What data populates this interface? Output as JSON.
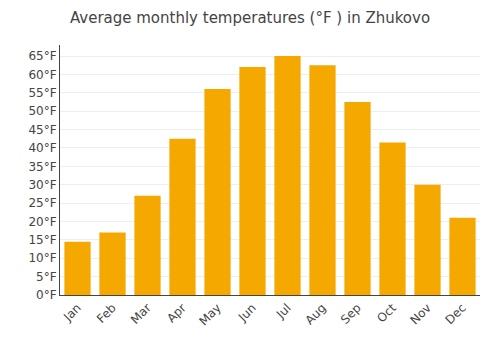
{
  "chart_data": {
    "type": "bar",
    "title": "Average monthly temperatures (°F ) in Zhukovo",
    "categories": [
      "Jan",
      "Feb",
      "Mar",
      "Apr",
      "May",
      "Jun",
      "Jul",
      "Aug",
      "Sep",
      "Oct",
      "Nov",
      "Dec"
    ],
    "values": [
      14.5,
      17.0,
      27.0,
      42.5,
      56.0,
      62.0,
      65.0,
      62.5,
      52.5,
      41.5,
      30.0,
      21.0
    ],
    "color": "#F5A800",
    "ylim": [
      0,
      68
    ],
    "yticks": [
      {
        "value": 0,
        "label": "0°F"
      },
      {
        "value": 5,
        "label": "5°F"
      },
      {
        "value": 10,
        "label": "10°F"
      },
      {
        "value": 15,
        "label": "15°F"
      },
      {
        "value": 20,
        "label": "20°F"
      },
      {
        "value": 25,
        "label": "25°F"
      },
      {
        "value": 30,
        "label": "30°F"
      },
      {
        "value": 35,
        "label": "35°F"
      },
      {
        "value": 40,
        "label": "40°F"
      },
      {
        "value": 45,
        "label": "45°F"
      },
      {
        "value": 50,
        "label": "50°F"
      },
      {
        "value": 55,
        "label": "55°F"
      },
      {
        "value": 60,
        "label": "60°F"
      },
      {
        "value": 65,
        "label": "65°F"
      }
    ],
    "grid": true
  }
}
